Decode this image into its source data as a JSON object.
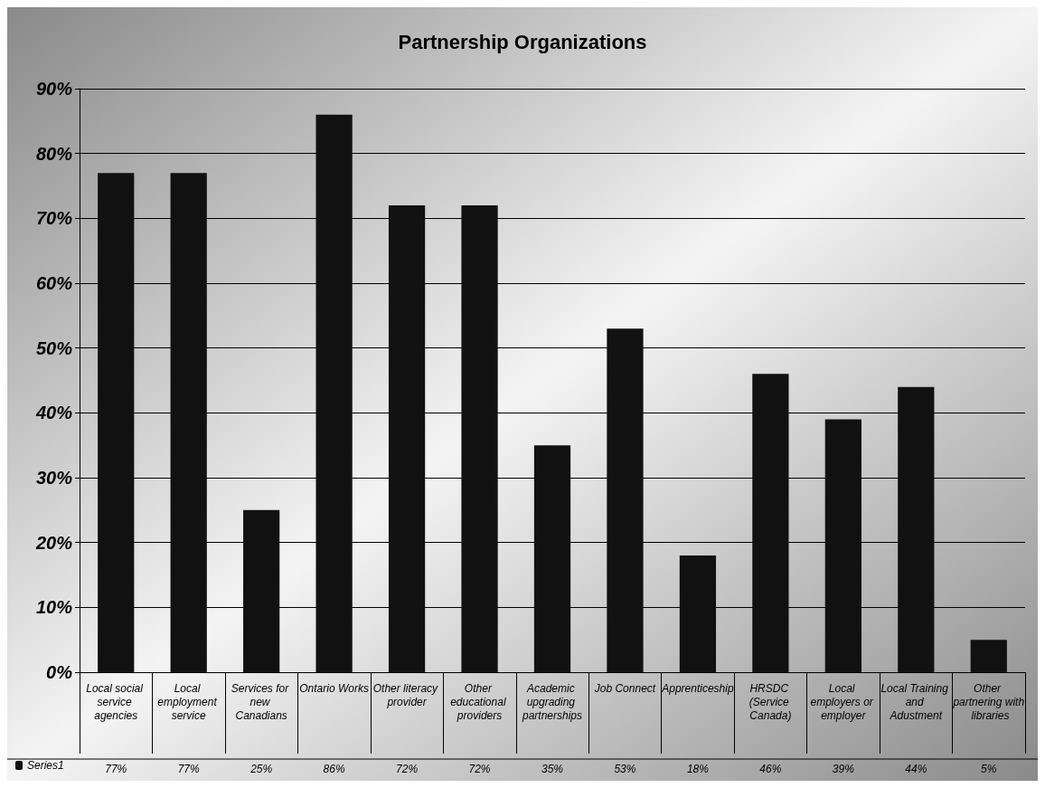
{
  "chart_data": {
    "type": "bar",
    "title": "Partnership Organizations",
    "categories": [
      "Local social service agencies",
      "Local employment service",
      "Services for new Canadians",
      "Ontario Works",
      "Other literacy provider",
      "Other educational providers",
      "Academic upgrading partnerships",
      "Job Connect",
      "Apprenticeship",
      "HRSDC (Service Canada)",
      "Local employers or employer",
      "Local Training and Adustment",
      "Other partnering with libraries"
    ],
    "series": [
      {
        "name": "Series1",
        "color": "#111111",
        "values": [
          77,
          77,
          25,
          86,
          72,
          72,
          35,
          53,
          18,
          46,
          39,
          44,
          5
        ],
        "value_labels": [
          "77%",
          "77%",
          "25%",
          "86%",
          "72%",
          "72%",
          "35%",
          "53%",
          "18%",
          "46%",
          "39%",
          "44%",
          "5%"
        ]
      }
    ],
    "ylim": [
      0,
      90
    ],
    "yticks": [
      {
        "value": 0,
        "label": "0%"
      },
      {
        "value": 10,
        "label": "10%"
      },
      {
        "value": 20,
        "label": "20%"
      },
      {
        "value": 30,
        "label": "30%"
      },
      {
        "value": 40,
        "label": "40%"
      },
      {
        "value": 50,
        "label": "50%"
      },
      {
        "value": 60,
        "label": "60%"
      },
      {
        "value": 70,
        "label": "70%"
      },
      {
        "value": 80,
        "label": "80%"
      },
      {
        "value": 90,
        "label": "90%"
      }
    ],
    "grid": "y",
    "legend": "bottom left"
  }
}
